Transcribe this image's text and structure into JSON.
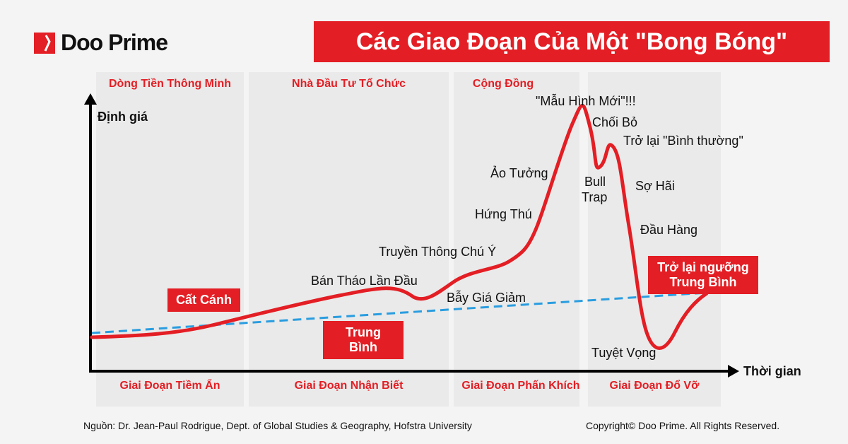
{
  "brand": {
    "name": "Doo Prime",
    "color": "#e31e24"
  },
  "title": "Các Giao Đoạn Của Một \"Bong Bóng\"",
  "axes": {
    "y": "Định giá",
    "x": "Thời gian"
  },
  "participants": [
    "Dòng Tiền Thông Minh",
    "Nhà Đầu Tư Tổ Chức",
    "Cộng Đồng"
  ],
  "phases": [
    "Giai Đoạn Tiềm Ẩn",
    "Giai Đoạn Nhận Biết",
    "Giai Đoạn Phấn Khích",
    "Giai Đoạn Đổ Vỡ"
  ],
  "labels": {
    "new_paradigm": "\"Mẫu Hình Mới\"!!!",
    "denial": "Chối Bỏ",
    "return_normal": "Trở lại \"Bình thường\"",
    "delusion": "Ảo Tưởng",
    "bull": "Bull",
    "trap": "Trap",
    "fear": "Sợ Hãi",
    "enthusiasm": "Hứng Thú",
    "capitulation": "Đầu Hàng",
    "media": "Truyền Thông Chú Ý",
    "first_selloff": "Bán Tháo Lần Đầu",
    "bear_trap": "Bẫy Giá Giảm",
    "despair": "Tuyệt Vọng"
  },
  "boxes": {
    "takeoff": "Cất Cánh",
    "mean": "Trung Bình",
    "return_mean_1": "Trở lại ngưỡng",
    "return_mean_2": "Trung Bình"
  },
  "footer": {
    "source": "Nguồn: Dr. Jean-Paul Rodrigue, Dept. of Global Studies & Geography, Hofstra University",
    "copyright": "Copyright© Doo Prime. All Rights Reserved."
  },
  "colors": {
    "curve": "#e31e24",
    "mean_line": "#2a9de0"
  }
}
